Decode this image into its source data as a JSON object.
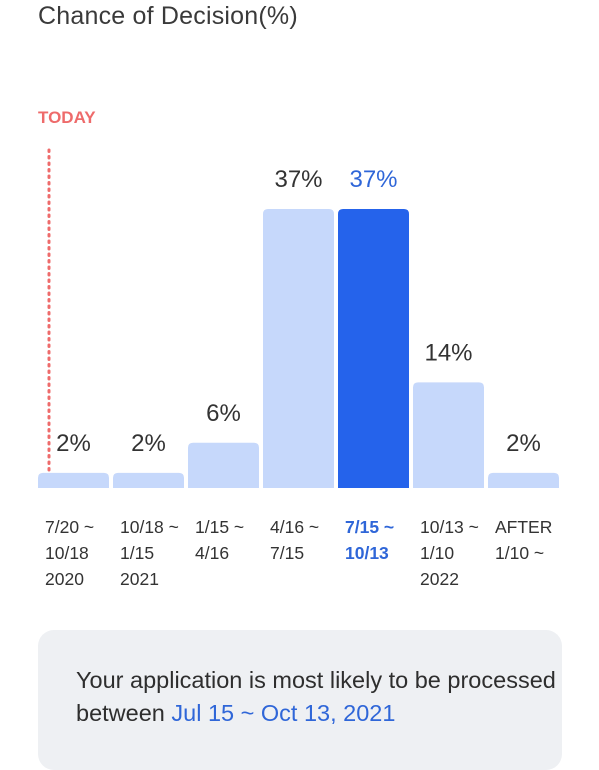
{
  "title": "Chance of Decision(%)",
  "today_label": "TODAY",
  "colors": {
    "bar": "#c6d8fb",
    "bar_highlight": "#2563eb",
    "highlight_text": "#2f66d8",
    "today": "#ee6b6b",
    "text": "#333333"
  },
  "chart_data": {
    "type": "bar",
    "categories": [
      [
        "7/20 ~",
        "10/18",
        "2020"
      ],
      [
        "10/18 ~",
        "1/15",
        "2021"
      ],
      [
        "1/15 ~",
        "4/16"
      ],
      [
        "4/16 ~",
        "7/15"
      ],
      [
        "7/15 ~",
        "10/13"
      ],
      [
        "10/13 ~",
        "1/10",
        "2022"
      ],
      [
        "AFTER",
        "1/10 ~"
      ]
    ],
    "values": [
      2,
      2,
      6,
      37,
      37,
      14,
      2
    ],
    "value_labels": [
      "2%",
      "2%",
      "6%",
      "37%",
      "37%",
      "14%",
      "2%"
    ],
    "highlight_index": 4,
    "unit": "%"
  },
  "summary": {
    "text_before": "Your application is most likely to be processed between ",
    "highlight": "Jul 15 ~ Oct 13, 2021"
  }
}
